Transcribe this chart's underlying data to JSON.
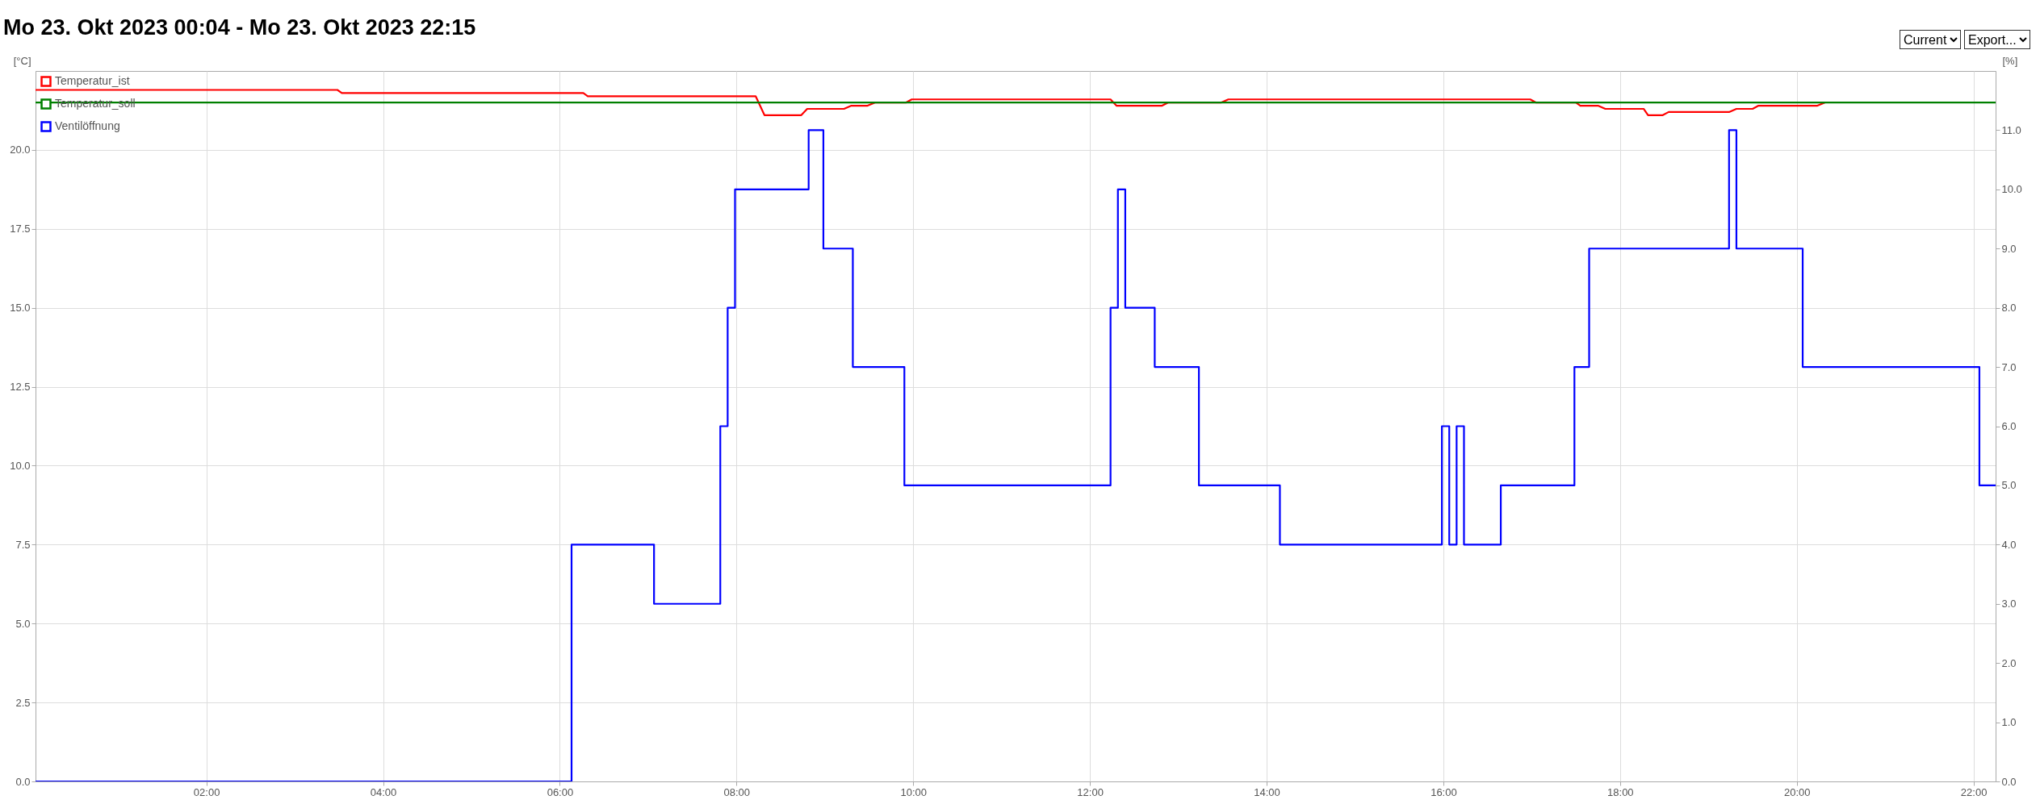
{
  "chart_data": {
    "type": "line",
    "title": "Mo 23. Okt 2023 00:04 - Mo 23. Okt 2023 22:15",
    "ylabel": "[°C]",
    "y2label": "[%]",
    "annotations": [
      "Current",
      "Export..."
    ],
    "xlim": [
      "2023-10-23T00:04",
      "2023-10-23T22:15"
    ],
    "xticks": [
      {
        "value": "2023-10-23T02:00",
        "label": "02:00"
      },
      {
        "value": "2023-10-23T04:00",
        "label": "04:00"
      },
      {
        "value": "2023-10-23T06:00",
        "label": "06:00"
      },
      {
        "value": "2023-10-23T08:00",
        "label": "08:00"
      },
      {
        "value": "2023-10-23T10:00",
        "label": "10:00"
      },
      {
        "value": "2023-10-23T12:00",
        "label": "12:00"
      },
      {
        "value": "2023-10-23T14:00",
        "label": "14:00"
      },
      {
        "value": "2023-10-23T16:00",
        "label": "16:00"
      },
      {
        "value": "2023-10-23T18:00",
        "label": "18:00"
      },
      {
        "value": "2023-10-23T20:00",
        "label": "20:00"
      },
      {
        "value": "2023-10-23T22:00",
        "label": "22:00"
      }
    ],
    "ylim": [
      0,
      22.5
    ],
    "yticks": [
      {
        "value": 0,
        "label": "0.0"
      },
      {
        "value": 2.5,
        "label": "2.5"
      },
      {
        "value": 5,
        "label": "5.0"
      },
      {
        "value": 7.5,
        "label": "7.5"
      },
      {
        "value": 10,
        "label": "10.0"
      },
      {
        "value": 12.5,
        "label": "12.5"
      },
      {
        "value": 15,
        "label": "15.0"
      },
      {
        "value": 17.5,
        "label": "17.5"
      },
      {
        "value": 20,
        "label": "20.0"
      }
    ],
    "y2lim": [
      0,
      12
    ],
    "y2ticks": [
      {
        "value": 0,
        "label": "0.0"
      },
      {
        "value": 1,
        "label": "1.0"
      },
      {
        "value": 2,
        "label": "2.0"
      },
      {
        "value": 3,
        "label": "3.0"
      },
      {
        "value": 4,
        "label": "4.0"
      },
      {
        "value": 5,
        "label": "5.0"
      },
      {
        "value": 6,
        "label": "6.0"
      },
      {
        "value": 7,
        "label": "7.0"
      },
      {
        "value": 8,
        "label": "8.0"
      },
      {
        "value": 9,
        "label": "9.0"
      },
      {
        "value": 10,
        "label": "10.0"
      },
      {
        "value": 11,
        "label": "11.0"
      }
    ],
    "grid": true,
    "legend": "top left",
    "marker": "none",
    "line_style": "solid",
    "series": [
      {
        "name": "Temperatur_ist",
        "color": "#ff0000",
        "x": [
          "2023-10-23T00:04",
          "2023-10-23T03:29",
          "2023-10-23T03:32",
          "2023-10-23T06:16",
          "2023-10-23T06:19",
          "2023-10-23T08:13",
          "2023-10-23T08:19",
          "2023-10-23T08:44",
          "2023-10-23T08:48",
          "2023-10-23T09:13",
          "2023-10-23T09:18",
          "2023-10-23T09:29",
          "2023-10-23T09:34",
          "2023-10-23T09:55",
          "2023-10-23T09:59",
          "2023-10-23T12:14",
          "2023-10-23T12:18",
          "2023-10-23T12:49",
          "2023-10-23T12:53",
          "2023-10-23T13:29",
          "2023-10-23T13:34",
          "2023-10-23T16:59",
          "2023-10-23T17:03",
          "2023-10-23T17:30",
          "2023-10-23T17:33",
          "2023-10-23T17:45",
          "2023-10-23T17:50",
          "2023-10-23T18:16",
          "2023-10-23T18:19",
          "2023-10-23T18:29",
          "2023-10-23T18:33",
          "2023-10-23T19:14",
          "2023-10-23T19:19",
          "2023-10-23T19:30",
          "2023-10-23T19:34",
          "2023-10-23T20:14",
          "2023-10-23T20:19"
        ],
        "values": [
          21.9,
          21.9,
          21.8,
          21.8,
          21.7,
          21.7,
          21.1,
          21.1,
          21.3,
          21.3,
          21.4,
          21.4,
          21.5,
          21.5,
          21.6,
          21.6,
          21.4,
          21.4,
          21.5,
          21.5,
          21.6,
          21.6,
          21.5,
          21.5,
          21.4,
          21.4,
          21.3,
          21.3,
          21.1,
          21.1,
          21.2,
          21.2,
          21.3,
          21.3,
          21.4,
          21.4,
          21.5
        ]
      },
      {
        "name": "Temperatur_soll",
        "color": "#008000",
        "x": [
          "2023-10-23T00:04",
          "2023-10-23T22:15"
        ],
        "values": [
          21.5,
          21.5
        ]
      },
      {
        "name": "Ventilöffnung",
        "color": "#0000ff",
        "type": "step",
        "axis": "y2",
        "x": [
          "2023-10-23T00:04",
          "2023-10-23T06:08",
          "2023-10-23T07:04",
          "2023-10-23T07:49",
          "2023-10-23T07:54",
          "2023-10-23T07:59",
          "2023-10-23T08:49",
          "2023-10-23T08:59",
          "2023-10-23T09:19",
          "2023-10-23T09:54",
          "2023-10-23T12:14",
          "2023-10-23T12:19",
          "2023-10-23T12:24",
          "2023-10-23T12:44",
          "2023-10-23T13:14",
          "2023-10-23T14:09",
          "2023-10-23T15:59",
          "2023-10-23T16:04",
          "2023-10-23T16:09",
          "2023-10-23T16:14",
          "2023-10-23T16:39",
          "2023-10-23T17:29",
          "2023-10-23T17:39",
          "2023-10-23T19:14",
          "2023-10-23T19:19",
          "2023-10-23T20:04",
          "2023-10-23T22:04",
          "2023-10-23T22:15"
        ],
        "values": [
          0,
          4,
          3,
          6,
          8,
          10,
          11,
          9,
          7,
          5,
          8,
          10,
          8,
          7,
          5,
          4,
          6,
          4,
          6,
          4,
          5,
          7,
          9,
          11,
          9,
          7,
          5,
          5
        ]
      }
    ]
  }
}
